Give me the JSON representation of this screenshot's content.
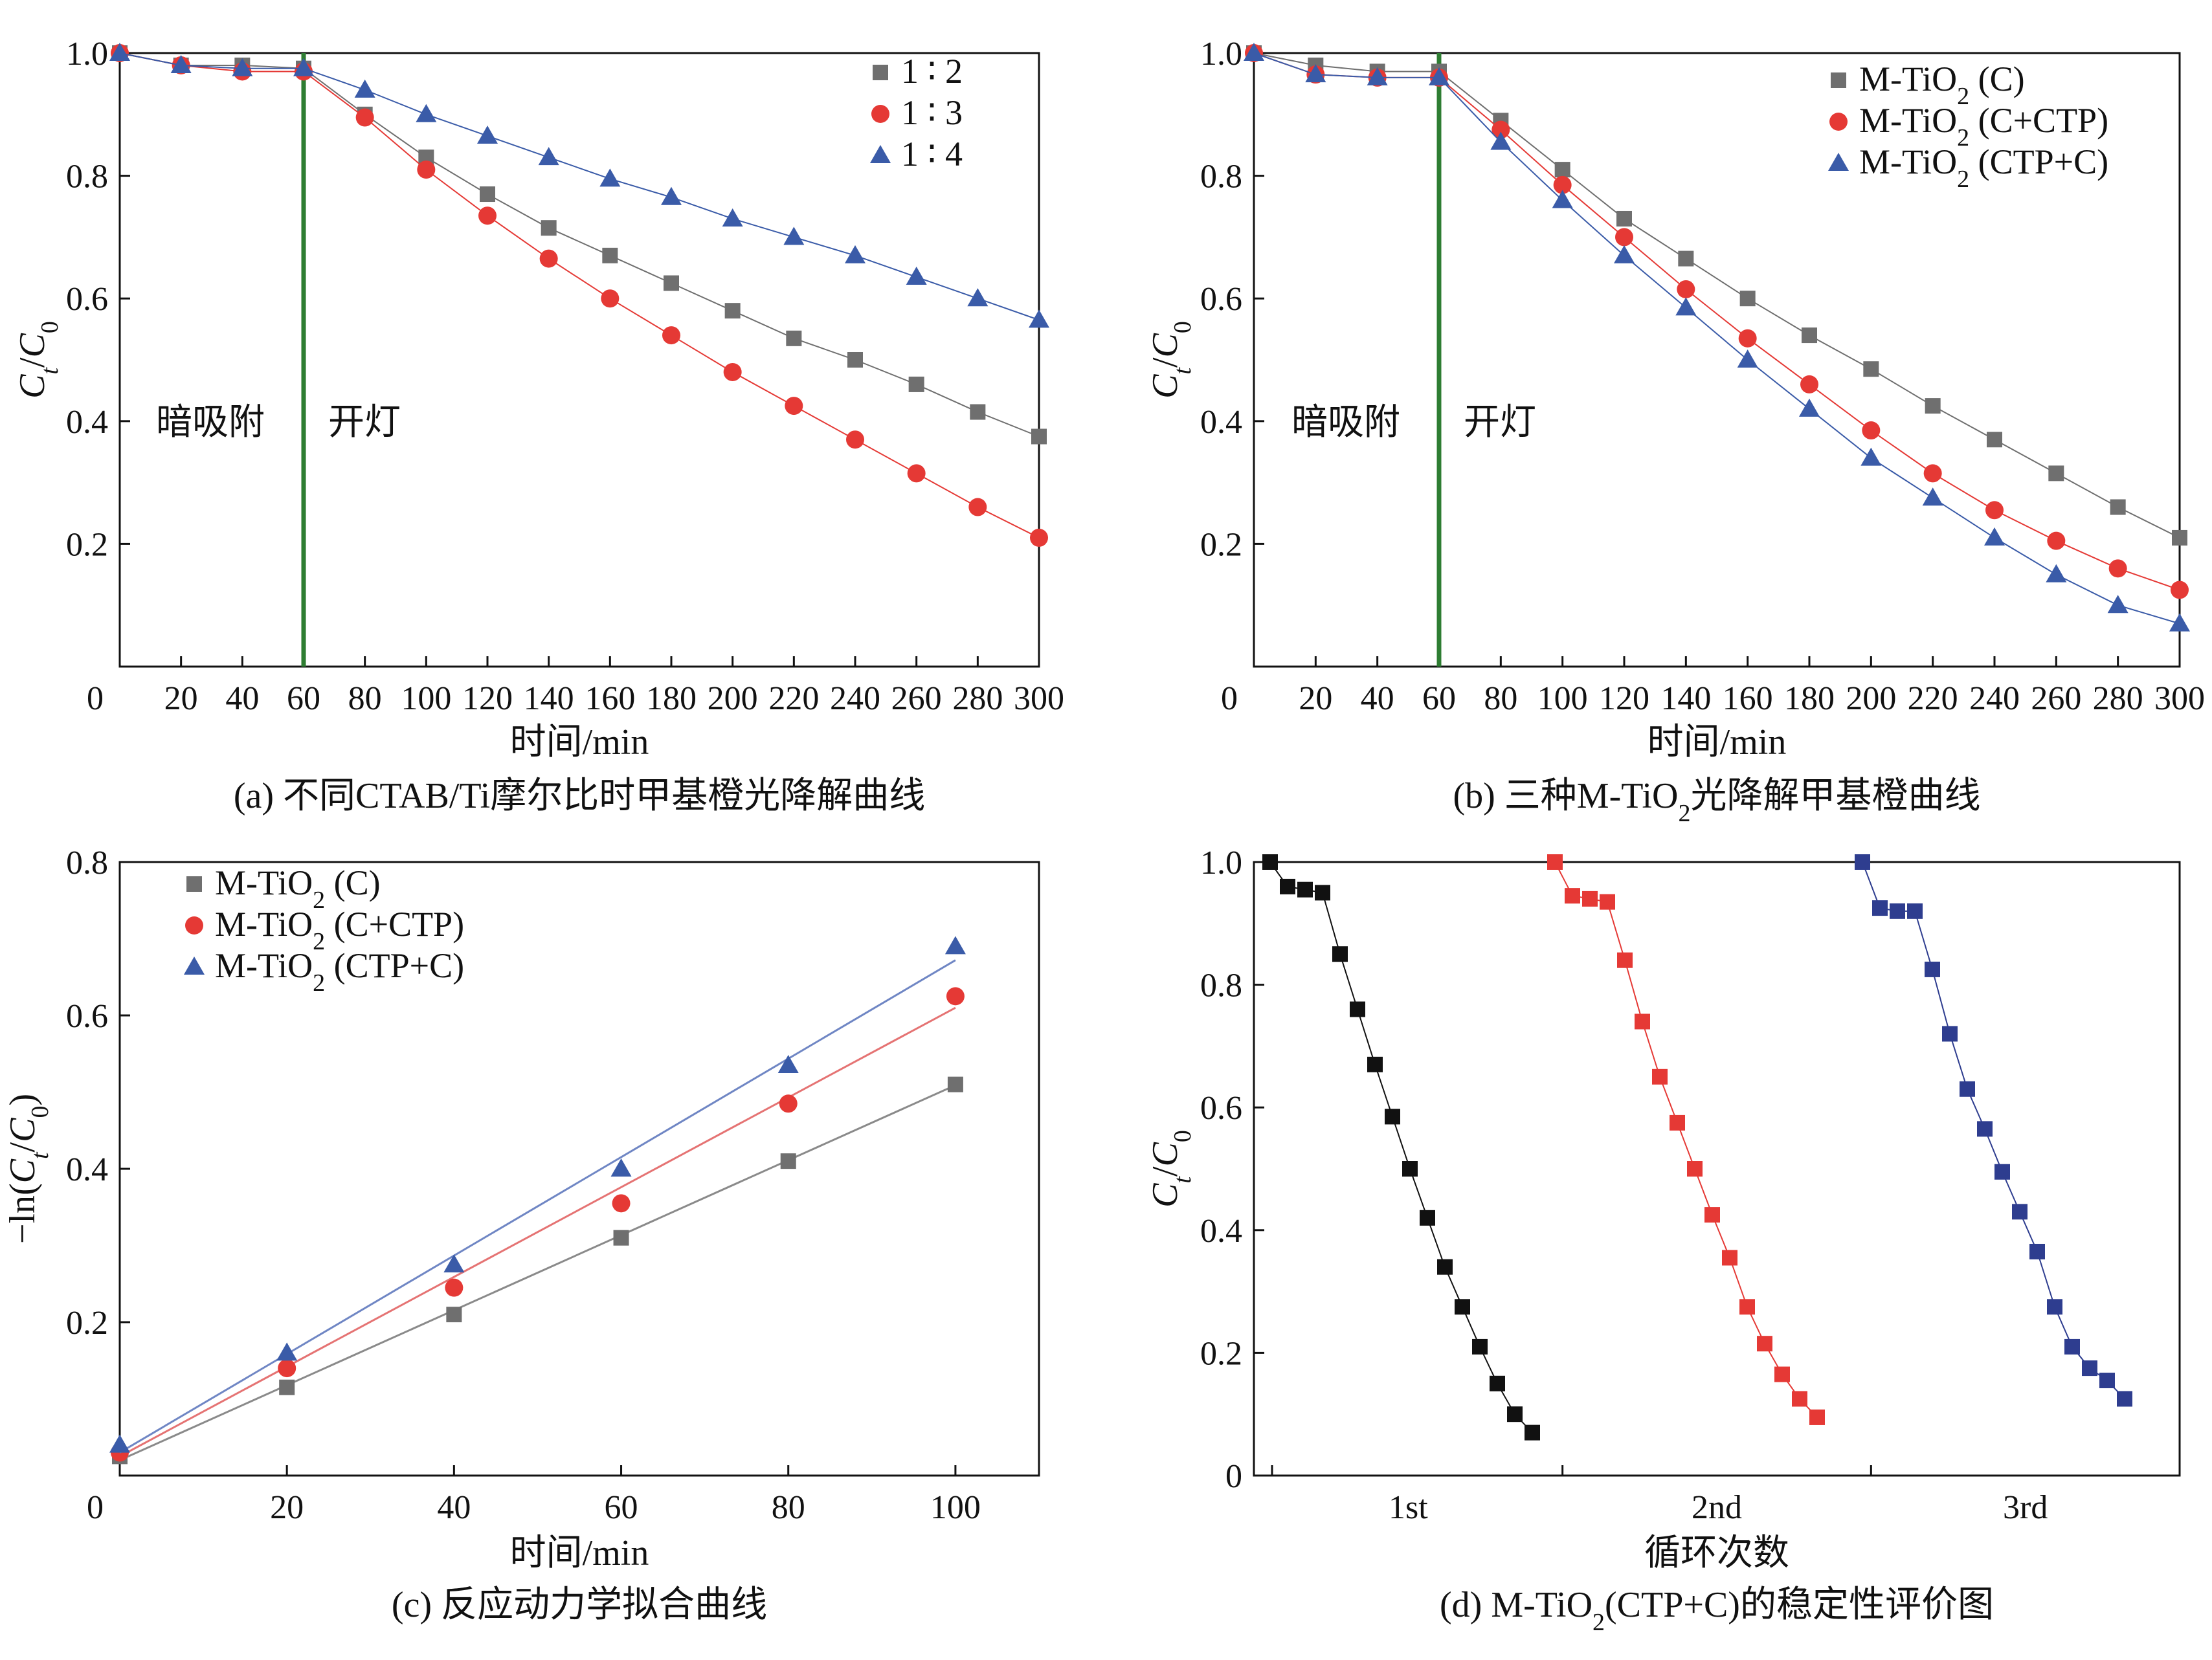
{
  "chart_data": [
    {
      "id": "a",
      "type": "line",
      "caption": "(a) 不同CTAB/Ti摩尔比时甲基橙光降解曲线",
      "xlabel": "时间/min",
      "ylabel": "Ct/C0",
      "xticks": [
        "0",
        "20",
        "40",
        "60",
        "80",
        "100",
        "120",
        "140",
        "160",
        "180",
        "200",
        "220",
        "240",
        "260",
        "280",
        "300"
      ],
      "yticks": [
        "0.2",
        "0.4",
        "0.6",
        "0.8",
        "1.0"
      ],
      "xlim": [
        0,
        300
      ],
      "ylim": [
        0,
        1.0
      ],
      "light_on_x": 60,
      "annotations": {
        "dark": "暗吸附",
        "light": "开灯"
      },
      "legend": [
        "1 ∶ 2",
        "1 ∶ 3",
        "1 ∶ 4"
      ],
      "x": [
        0,
        20,
        40,
        60,
        80,
        100,
        120,
        140,
        160,
        180,
        200,
        220,
        240,
        260,
        280,
        300
      ],
      "series": [
        {
          "name": "1 ∶ 2",
          "marker": "square",
          "color": "#6f6f6f",
          "values": [
            1.0,
            0.98,
            0.98,
            0.975,
            0.9,
            0.83,
            0.77,
            0.715,
            0.67,
            0.625,
            0.58,
            0.535,
            0.5,
            0.46,
            0.415,
            0.375
          ]
        },
        {
          "name": "1 ∶ 3",
          "marker": "circle",
          "color": "#e53935",
          "values": [
            1.0,
            0.98,
            0.97,
            0.97,
            0.895,
            0.81,
            0.735,
            0.665,
            0.6,
            0.54,
            0.48,
            0.425,
            0.37,
            0.315,
            0.26,
            0.21
          ]
        },
        {
          "name": "1 ∶ 4",
          "marker": "triangle",
          "color": "#3a5ba8",
          "values": [
            1.0,
            0.98,
            0.975,
            0.975,
            0.94,
            0.9,
            0.865,
            0.83,
            0.795,
            0.765,
            0.73,
            0.7,
            0.67,
            0.635,
            0.6,
            0.565
          ]
        }
      ]
    },
    {
      "id": "b",
      "type": "line",
      "caption": "(b) 三种M-TiO₂光降解甲基橙曲线",
      "xlabel": "时间/min",
      "ylabel": "Ct/C0",
      "xticks": [
        "0",
        "20",
        "40",
        "60",
        "80",
        "100",
        "120",
        "140",
        "160",
        "180",
        "200",
        "220",
        "240",
        "260",
        "280",
        "300"
      ],
      "yticks": [
        "0.2",
        "0.4",
        "0.6",
        "0.8",
        "1.0"
      ],
      "xlim": [
        0,
        300
      ],
      "ylim": [
        0,
        1.0
      ],
      "light_on_x": 60,
      "annotations": {
        "dark": "暗吸附",
        "light": "开灯"
      },
      "legend": [
        "M-TiO₂ (C)",
        "M-TiO₂ (C+CTP)",
        "M-TiO₂ (CTP+C)"
      ],
      "x": [
        0,
        20,
        40,
        60,
        80,
        100,
        120,
        140,
        160,
        180,
        200,
        220,
        240,
        260,
        280,
        300
      ],
      "series": [
        {
          "name": "M-TiO₂ (C)",
          "marker": "square",
          "color": "#6f6f6f",
          "values": [
            1.0,
            0.98,
            0.97,
            0.97,
            0.89,
            0.81,
            0.73,
            0.665,
            0.6,
            0.54,
            0.485,
            0.425,
            0.37,
            0.315,
            0.26,
            0.21
          ]
        },
        {
          "name": "M-TiO₂ (C+CTP)",
          "marker": "circle",
          "color": "#e53935",
          "values": [
            1.0,
            0.965,
            0.96,
            0.96,
            0.875,
            0.785,
            0.7,
            0.615,
            0.535,
            0.46,
            0.385,
            0.315,
            0.255,
            0.205,
            0.16,
            0.125
          ]
        },
        {
          "name": "M-TiO₂ (CTP+C)",
          "marker": "triangle",
          "color": "#3a5ba8",
          "values": [
            1.0,
            0.965,
            0.96,
            0.96,
            0.855,
            0.76,
            0.67,
            0.585,
            0.5,
            0.42,
            0.34,
            0.275,
            0.21,
            0.15,
            0.1,
            0.07
          ]
        }
      ]
    },
    {
      "id": "c",
      "type": "scatter",
      "caption": "(c) 反应动力学拟合曲线",
      "xlabel": "时间/min",
      "ylabel": "-ln(Ct/C0)",
      "xticks": [
        "0",
        "20",
        "40",
        "60",
        "80",
        "100"
      ],
      "yticks": [
        "0.2",
        "0.4",
        "0.6",
        "0.8"
      ],
      "xlim": [
        0,
        110
      ],
      "ylim": [
        0,
        0.8
      ],
      "legend": [
        "M-TiO₂ (C)",
        "M-TiO₂ (C+CTP)",
        "M-TiO₂ (CTP+C)"
      ],
      "x": [
        0,
        20,
        40,
        60,
        80,
        100
      ],
      "series": [
        {
          "name": "M-TiO₂ (C)",
          "marker": "square",
          "color": "#6f6f6f",
          "fit_color": "#8a8a8a",
          "values": [
            0.025,
            0.115,
            0.21,
            0.31,
            0.41,
            0.51
          ],
          "fit": [
            0.02,
            0.509
          ]
        },
        {
          "name": "M-TiO₂ (C+CTP)",
          "marker": "circle",
          "color": "#e53935",
          "fit_color": "#e57373",
          "values": [
            0.03,
            0.14,
            0.245,
            0.355,
            0.485,
            0.625
          ],
          "fit": [
            0.025,
            0.61
          ]
        },
        {
          "name": "M-TiO₂ (CTP+C)",
          "marker": "triangle",
          "color": "#3a5ba8",
          "fit_color": "#6f86c4",
          "values": [
            0.04,
            0.16,
            0.275,
            0.4,
            0.535,
            0.69
          ],
          "fit": [
            0.03,
            0.672
          ]
        }
      ]
    },
    {
      "id": "d",
      "type": "line",
      "caption": "(d) M-TiO₂(CTP+C)的稳定性评价图",
      "xlabel": "循环次数",
      "ylabel": "Ct/C0",
      "xticks": [
        "1st",
        "2nd",
        "3rd"
      ],
      "yticks": [
        "0",
        "0.2",
        "0.4",
        "0.6",
        "0.8",
        "1.0"
      ],
      "ylim": [
        0,
        1.0
      ],
      "series": [
        {
          "name": "1st",
          "marker": "square",
          "color": "#111111",
          "values": [
            1.0,
            0.96,
            0.955,
            0.95,
            0.85,
            0.76,
            0.67,
            0.585,
            0.5,
            0.42,
            0.34,
            0.275,
            0.21,
            0.15,
            0.1,
            0.07
          ]
        },
        {
          "name": "2nd",
          "marker": "square",
          "color": "#e53935",
          "values": [
            1.0,
            0.945,
            0.94,
            0.935,
            0.84,
            0.74,
            0.65,
            0.575,
            0.5,
            0.425,
            0.355,
            0.275,
            0.215,
            0.165,
            0.125,
            0.095
          ]
        },
        {
          "name": "3rd",
          "marker": "square",
          "color": "#2e3d8f",
          "values": [
            1.0,
            0.925,
            0.92,
            0.92,
            0.825,
            0.72,
            0.63,
            0.565,
            0.495,
            0.43,
            0.365,
            0.275,
            0.21,
            0.175,
            0.155,
            0.125
          ]
        }
      ]
    }
  ]
}
